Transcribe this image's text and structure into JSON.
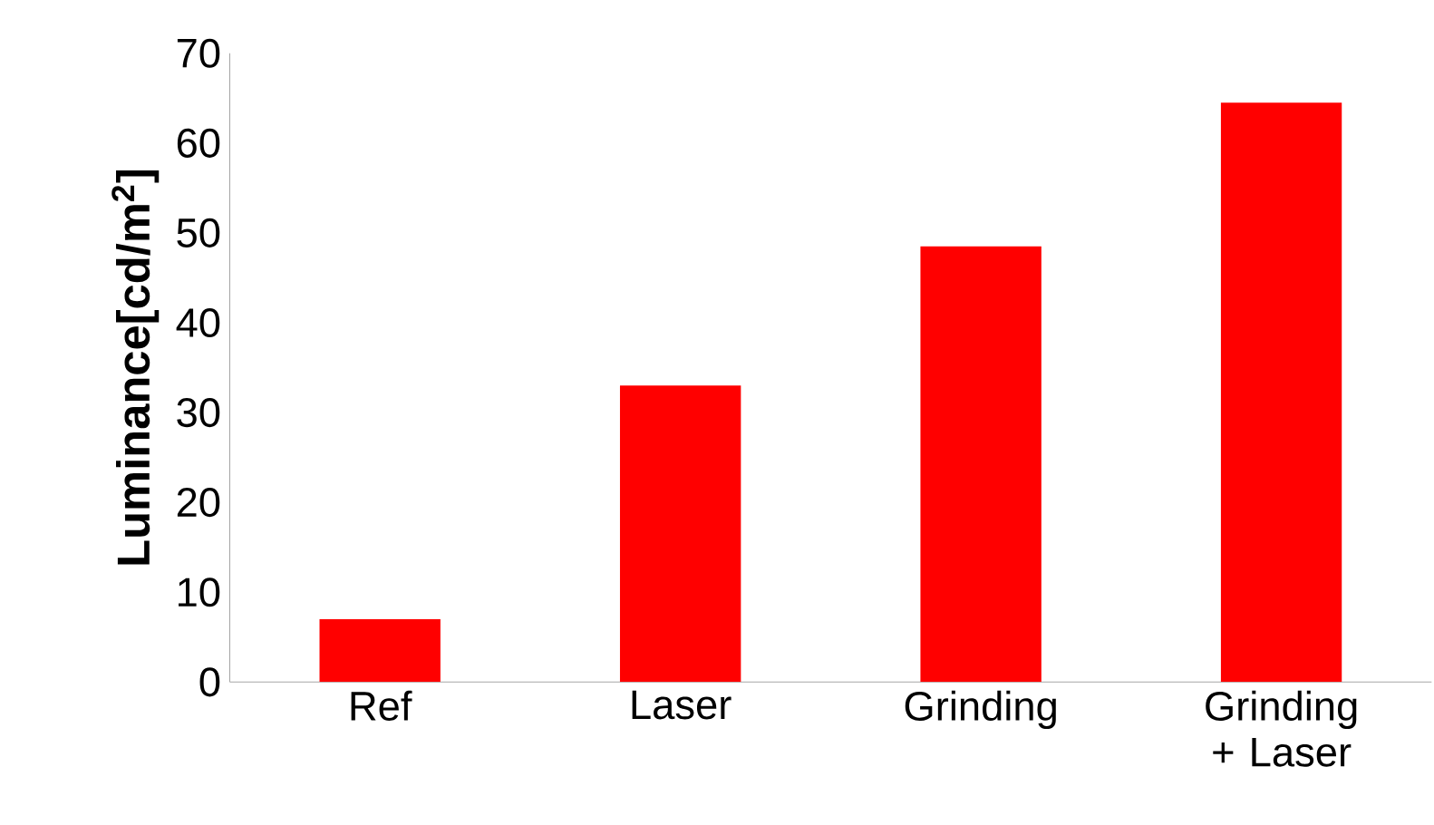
{
  "chart_data": {
    "type": "bar",
    "ylabel": "Luminance[cd/m$^{2}$]",
    "categories": [
      "Ref",
      "Laser",
      "Grinding",
      "Grinding + Laser"
    ],
    "values": [
      7,
      33,
      48.5,
      64.5
    ],
    "color": "#ff0000",
    "ylim": [
      0,
      70
    ],
    "yticks": [
      0,
      10,
      20,
      30,
      40,
      50,
      60,
      70
    ],
    "grid": false
  }
}
